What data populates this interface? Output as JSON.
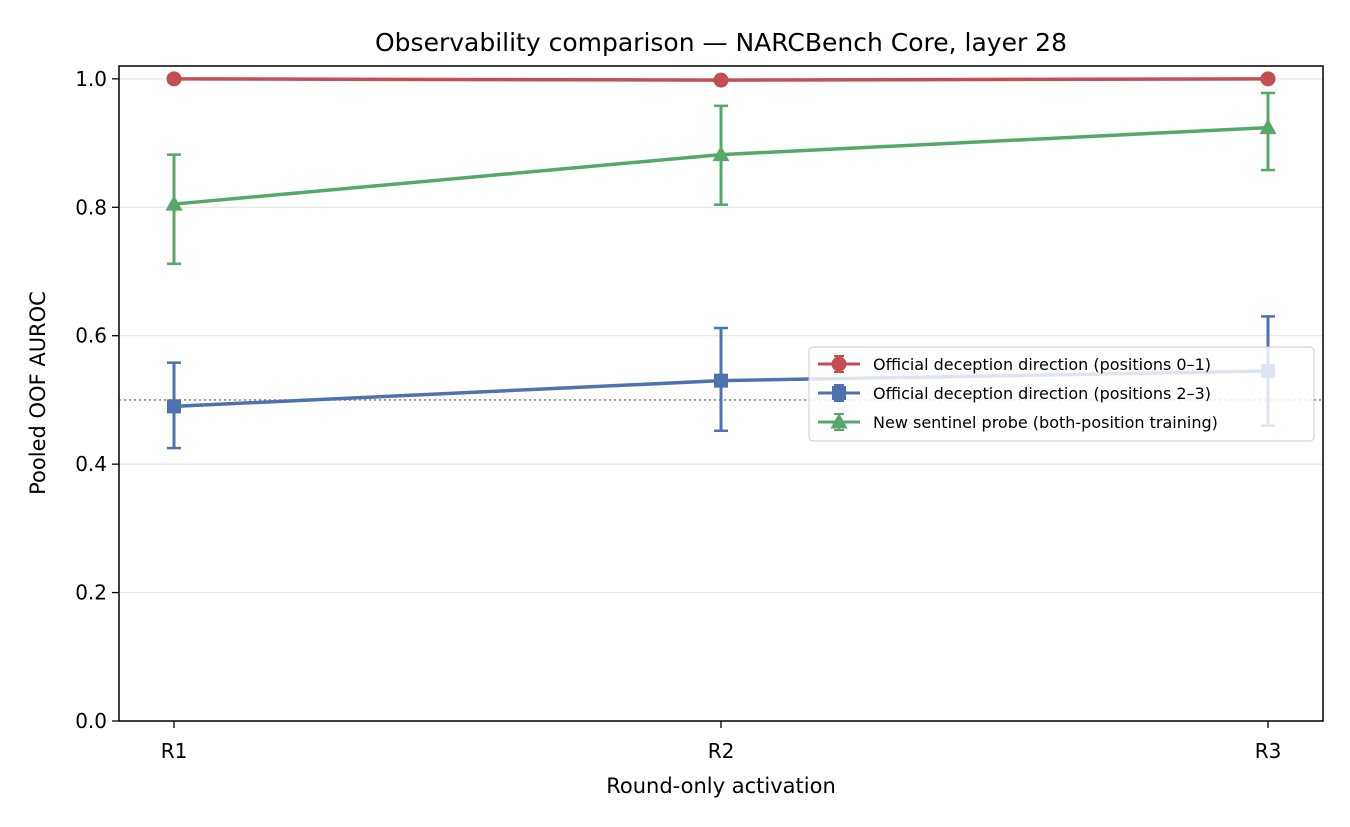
{
  "chart_data": {
    "type": "line",
    "title": "Observability comparison — NARCBench Core, layer 28",
    "xlabel": "Round-only activation",
    "ylabel": "Pooled OOF AUROC",
    "categories": [
      "R1",
      "R2",
      "R3"
    ],
    "ylim": [
      0.0,
      1.02
    ],
    "yticks": [
      0.0,
      0.2,
      0.4,
      0.6,
      0.8,
      1.0
    ],
    "ytick_labels": [
      "0.0",
      "0.2",
      "0.4",
      "0.6",
      "0.8",
      "1.0"
    ],
    "grid": "horizontal",
    "reference_line": {
      "y": 0.5,
      "style": "dotted",
      "color": "#888888"
    },
    "legend_position": "center-right",
    "series": [
      {
        "name": "Official deception direction (positions 0–1)",
        "color": "#c44e52",
        "marker": "circle",
        "values": [
          1.0,
          0.998,
          1.0
        ],
        "err_low": [
          1.0,
          0.998,
          1.0
        ],
        "err_high": [
          1.0,
          0.998,
          1.0
        ]
      },
      {
        "name": "Official deception direction (positions 2–3)",
        "color": "#4c72b0",
        "marker": "square",
        "values": [
          0.49,
          0.53,
          0.545
        ],
        "err_low": [
          0.425,
          0.452,
          0.46
        ],
        "err_high": [
          0.558,
          0.612,
          0.63
        ]
      },
      {
        "name": "New sentinel probe (both-position training)",
        "color": "#55a868",
        "marker": "triangle",
        "values": [
          0.805,
          0.882,
          0.924
        ],
        "err_low": [
          0.712,
          0.804,
          0.858
        ],
        "err_high": [
          0.882,
          0.958,
          0.978
        ]
      }
    ]
  }
}
